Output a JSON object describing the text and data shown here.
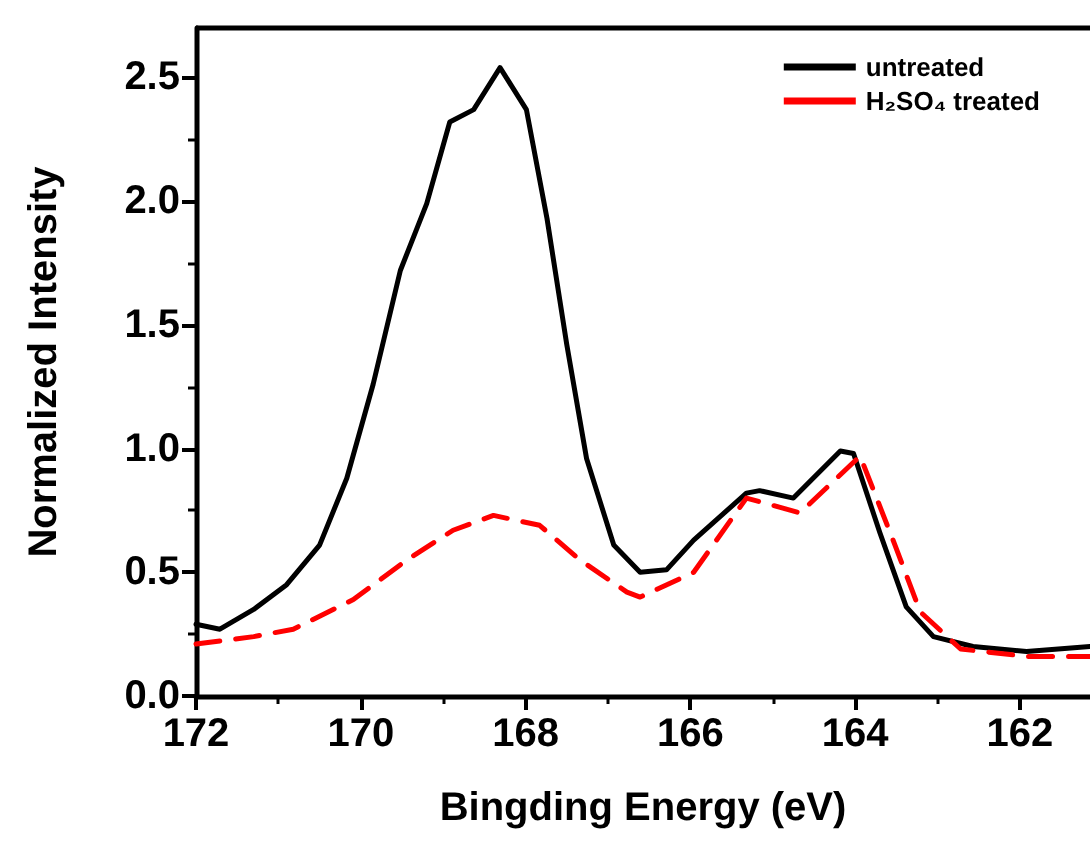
{
  "chart_data": {
    "type": "line",
    "xlabel": "Bingding Energy (eV)",
    "ylabel": "Normalized Intensity",
    "xlim": [
      172,
      161.15
    ],
    "xticks": [
      172,
      170,
      168,
      166,
      164,
      162
    ],
    "ylim": [
      0,
      2.7
    ],
    "yticks": [
      {
        "value": 0,
        "label": "0.0"
      },
      0.5,
      {
        "value": 1,
        "label": "1.0"
      },
      1.5,
      {
        "value": 2,
        "label": "2.0"
      },
      2.5
    ],
    "grid": false,
    "legend": "top right",
    "marker": "none",
    "series": [
      {
        "name": "untreated",
        "color": "#000000",
        "line_style": "solid",
        "x": [
          172.0,
          171.71,
          171.3,
          170.9,
          170.5,
          170.17,
          169.85,
          169.52,
          169.2,
          168.92,
          168.63,
          168.31,
          167.99,
          167.74,
          167.5,
          167.26,
          166.93,
          166.61,
          166.29,
          165.96,
          165.32,
          165.16,
          164.75,
          164.18,
          164.02,
          163.7,
          163.38,
          163.05,
          162.57,
          161.92,
          161.15
        ],
        "values": [
          0.29,
          0.27,
          0.35,
          0.45,
          0.61,
          0.88,
          1.26,
          1.72,
          1.99,
          2.32,
          2.37,
          2.54,
          2.37,
          1.93,
          1.42,
          0.96,
          0.61,
          0.5,
          0.51,
          0.63,
          0.82,
          0.83,
          0.8,
          0.99,
          0.98,
          0.66,
          0.36,
          0.24,
          0.2,
          0.18,
          0.2
        ]
      },
      {
        "name": "H₂SO₄ treated",
        "color": "#ff0000",
        "line_style": "dashed",
        "x": [
          172.0,
          171.3,
          170.82,
          170.09,
          169.44,
          168.88,
          168.39,
          167.83,
          167.34,
          166.77,
          166.61,
          165.96,
          165.32,
          164.67,
          163.94,
          163.54,
          163.21,
          162.72,
          161.92,
          161.15
        ],
        "values": [
          0.21,
          0.24,
          0.27,
          0.39,
          0.55,
          0.67,
          0.73,
          0.69,
          0.55,
          0.42,
          0.4,
          0.5,
          0.8,
          0.74,
          0.97,
          0.63,
          0.34,
          0.19,
          0.16,
          0.16
        ]
      }
    ]
  }
}
